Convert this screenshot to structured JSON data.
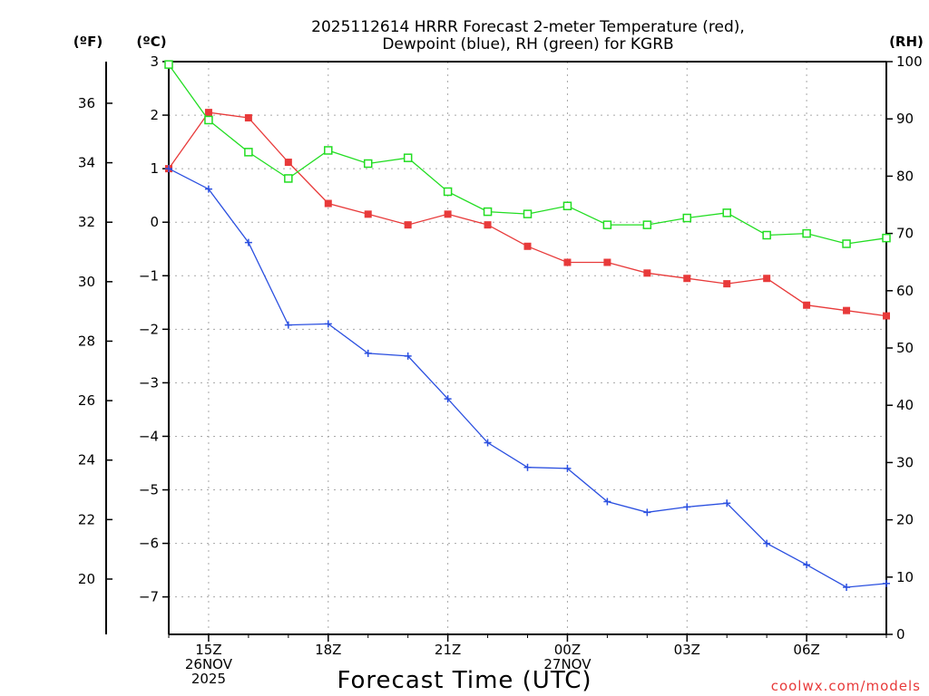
{
  "chart_data": {
    "type": "line",
    "title_line1": "2025112614 HRRR Forecast 2-meter Temperature (red),",
    "title_line2": "Dewpoint (blue), RH (green) for KGRB",
    "xlabel": "Forecast Time (UTC)",
    "credit": "coolwx.com/models",
    "unit_f": "(ºF)",
    "unit_c": "(ºC)",
    "unit_rh": "(RH)",
    "grid": true,
    "x_hours": [
      14,
      15,
      16,
      17,
      18,
      19,
      20,
      21,
      22,
      23,
      24,
      25,
      26,
      27,
      28,
      29,
      30,
      31,
      32
    ],
    "x_range": [
      14,
      32
    ],
    "x_ticks": [
      {
        "hour": 15,
        "lines": [
          "15Z",
          "26NOV",
          "2025"
        ]
      },
      {
        "hour": 18,
        "lines": [
          "18Z"
        ]
      },
      {
        "hour": 21,
        "lines": [
          "21Z"
        ]
      },
      {
        "hour": 24,
        "lines": [
          "00Z",
          "27NOV"
        ]
      },
      {
        "hour": 27,
        "lines": [
          "03Z"
        ]
      },
      {
        "hour": 30,
        "lines": [
          "06Z"
        ]
      }
    ],
    "y_celsius": {
      "range": [
        -7.7,
        3
      ],
      "ticks": [
        3,
        2,
        1,
        0,
        -1,
        -2,
        -3,
        -4,
        -5,
        -6,
        -7
      ],
      "tick_labels": [
        "3",
        "2",
        "1",
        "0",
        "−1",
        "−2",
        "−3",
        "−4",
        "−5",
        "−6",
        "−7"
      ]
    },
    "y_fahrenheit": {
      "ticks": [
        36,
        34,
        32,
        30,
        28,
        26,
        24,
        22,
        20
      ],
      "tick_labels": [
        "36",
        "34",
        "32",
        "30",
        "28",
        "26",
        "24",
        "22",
        "20"
      ]
    },
    "y_rh": {
      "range": [
        0,
        100
      ],
      "ticks": [
        100,
        90,
        80,
        70,
        60,
        50,
        40,
        30,
        20,
        10,
        0
      ],
      "tick_labels": [
        "100",
        "90",
        "80",
        "70",
        "60",
        "50",
        "40",
        "30",
        "20",
        "10",
        "0"
      ]
    },
    "series": [
      {
        "name": "Temperature",
        "axis": "celsius",
        "color": "#e83a3a",
        "marker": "filled-square",
        "values": [
          1.0,
          2.05,
          1.95,
          1.12,
          0.35,
          0.15,
          -0.05,
          0.15,
          -0.05,
          -0.45,
          -0.75,
          -0.75,
          -0.95,
          -1.05,
          -1.15,
          -1.05,
          -1.55,
          -1.65,
          -1.75
        ]
      },
      {
        "name": "Dewpoint",
        "axis": "celsius",
        "color": "#2a4fe0",
        "marker": "plus",
        "values": [
          1.0,
          0.62,
          -0.38,
          -1.92,
          -1.9,
          -2.45,
          -2.5,
          -3.3,
          -4.12,
          -4.58,
          -4.6,
          -5.22,
          -5.42,
          -5.32,
          -5.25,
          -6.0,
          -6.4,
          -6.82,
          -6.75
        ]
      },
      {
        "name": "RH",
        "axis": "rh",
        "color": "#22dd22",
        "marker": "open-square",
        "values": [
          99.5,
          89.8,
          84.2,
          79.6,
          84.5,
          82.2,
          83.2,
          77.3,
          73.8,
          73.4,
          74.8,
          71.5,
          71.5,
          72.7,
          73.6,
          69.7,
          70.0,
          68.2,
          69.2
        ]
      }
    ]
  }
}
